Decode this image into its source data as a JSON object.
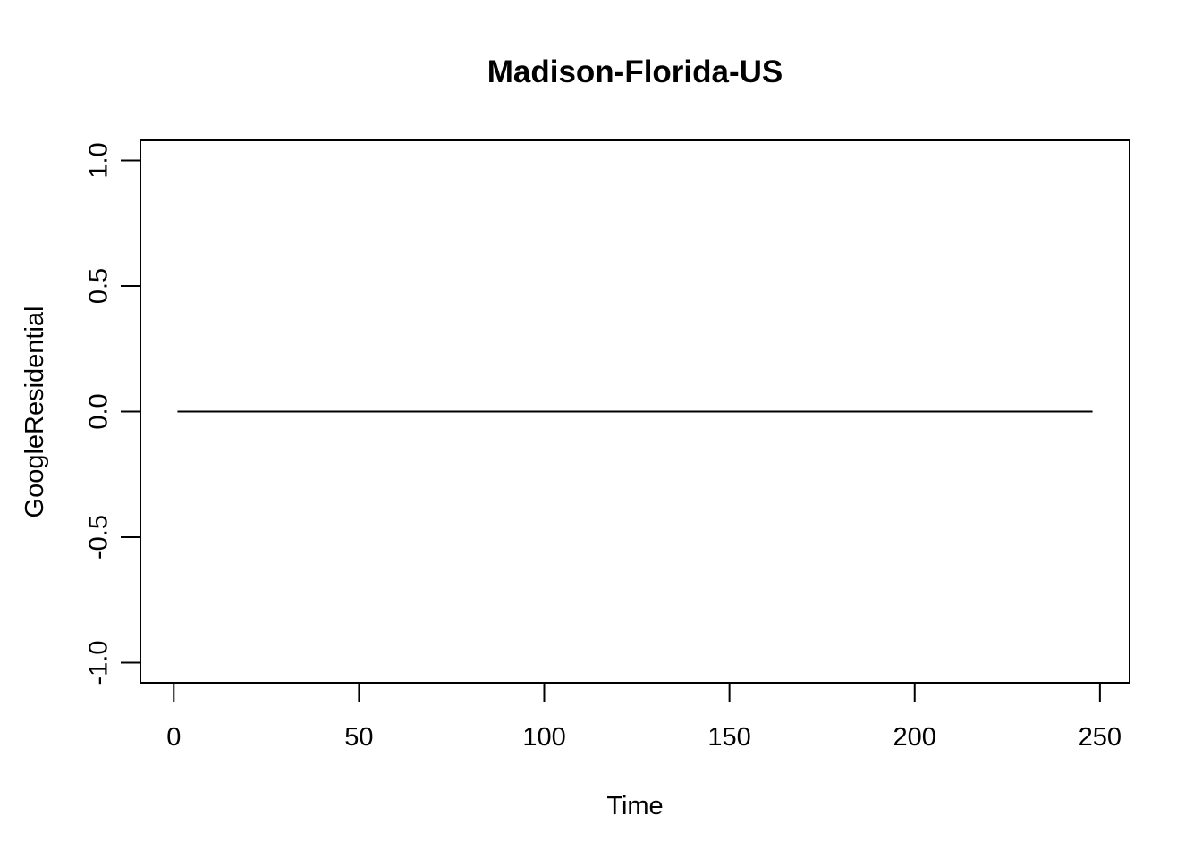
{
  "chart_data": {
    "type": "line",
    "title": "Madison-Florida-US",
    "xlabel": "Time",
    "ylabel": "GoogleResidential",
    "xlim": [
      -9,
      258
    ],
    "ylim": [
      -1.08,
      1.08
    ],
    "x_ticks": [
      0,
      50,
      100,
      150,
      200,
      250
    ],
    "y_ticks": [
      -1.0,
      -0.5,
      0.0,
      0.5,
      1.0
    ],
    "x_tick_labels": [
      "0",
      "50",
      "100",
      "150",
      "200",
      "250"
    ],
    "y_tick_labels": [
      "-1.0",
      "-0.5",
      "0.0",
      "0.5",
      "1.0"
    ],
    "grid": false,
    "series": [
      {
        "color": "#000000",
        "x": [
          1,
          248
        ],
        "y": [
          0,
          0
        ]
      }
    ]
  }
}
